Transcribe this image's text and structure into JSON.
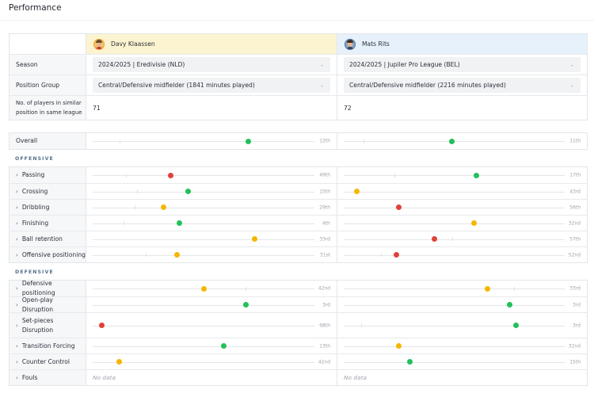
{
  "page": {
    "title": "Performance"
  },
  "colors": {
    "green": "#22c05a",
    "yellow": "#f5b700",
    "red": "#e0413a"
  },
  "players": [
    {
      "name": "Davy Klaassen",
      "season": "2024/2025 | Eredivisie (NLD)",
      "position_group": "Central/Defensive midfielder (1841 minutes played)",
      "similar_players": "71"
    },
    {
      "name": "Mats Rits",
      "season": "2024/2025 | Jupiler Pro League (BEL)",
      "position_group": "Central/Defensive midfielder (2216 minutes played)",
      "similar_players": "72"
    }
  ],
  "labels": {
    "season": "Season",
    "position_group": "Position Group",
    "similar_players": "No. of players in similar position in same league",
    "overall": "Overall",
    "no_data": "No data"
  },
  "overall": {
    "a": {
      "pct": 0.7,
      "tick": 0.12,
      "rank": "12th",
      "color": "green"
    },
    "b": {
      "pct": 0.49,
      "tick": 0.09,
      "rank": "11th",
      "color": "green"
    }
  },
  "sections": [
    {
      "title": "OFFENSIVE",
      "metrics": [
        {
          "label": "Passing",
          "a": {
            "pct": 0.35,
            "tick": 0.15,
            "rank": "49th",
            "color": "red"
          },
          "b": {
            "pct": 0.6,
            "tick": 0.23,
            "rank": "17th",
            "color": "green"
          }
        },
        {
          "label": "Crossing",
          "a": {
            "pct": 0.43,
            "tick": 0.2,
            "rank": "15th",
            "color": "green"
          },
          "b": {
            "pct": 0.06,
            "tick": 0.06,
            "rank": "43rd",
            "color": "yellow"
          }
        },
        {
          "label": "Dribbling",
          "a": {
            "pct": 0.32,
            "tick": 0.19,
            "rank": "29th",
            "color": "yellow"
          },
          "b": {
            "pct": 0.25,
            "tick": 0.25,
            "rank": "56th",
            "color": "red"
          }
        },
        {
          "label": "Finishing",
          "a": {
            "pct": 0.39,
            "tick": 0.14,
            "rank": "4th",
            "color": "green"
          },
          "b": {
            "pct": 0.59,
            "tick": 0.59,
            "rank": "32nd",
            "color": "yellow"
          }
        },
        {
          "label": "Ball retention",
          "a": {
            "pct": 0.73,
            "tick": 0.73,
            "rank": "33rd",
            "color": "yellow"
          },
          "b": {
            "pct": 0.41,
            "tick": 0.49,
            "rank": "57th",
            "color": "red"
          }
        },
        {
          "label": "Offensive positioning",
          "a": {
            "pct": 0.38,
            "tick": 0.24,
            "rank": "31st",
            "color": "yellow"
          },
          "b": {
            "pct": 0.24,
            "tick": 0.17,
            "rank": "52nd",
            "color": "red"
          }
        }
      ]
    },
    {
      "title": "DEFENSIVE",
      "metrics": [
        {
          "label": "Defensive positioning",
          "a": {
            "pct": 0.5,
            "tick": 0.69,
            "rank": "42nd",
            "color": "yellow"
          },
          "b": {
            "pct": 0.65,
            "tick": 0.77,
            "rank": "33rd",
            "color": "yellow"
          }
        },
        {
          "label": "Open-play Disruption",
          "a": {
            "pct": 0.69,
            "tick": 0.69,
            "rank": "3rd",
            "color": "green"
          },
          "b": {
            "pct": 0.75,
            "tick": 0.75,
            "rank": "3rd",
            "color": "green"
          }
        },
        {
          "label": "Set-pieces Disruption",
          "a": {
            "pct": 0.04,
            "tick": 0.04,
            "rank": "68th",
            "color": "red"
          },
          "b": {
            "pct": 0.78,
            "tick": 0.08,
            "rank": "3rd",
            "color": "green"
          }
        },
        {
          "label": "Transition Forcing",
          "a": {
            "pct": 0.59,
            "tick": 0.59,
            "rank": "13th",
            "color": "green"
          },
          "b": {
            "pct": 0.25,
            "tick": 0.25,
            "rank": "32nd",
            "color": "yellow"
          }
        },
        {
          "label": "Counter Control",
          "a": {
            "pct": 0.12,
            "tick": 0.12,
            "rank": "42nd",
            "color": "yellow"
          },
          "b": {
            "pct": 0.3,
            "tick": 0.3,
            "rank": "15th",
            "color": "green"
          }
        },
        {
          "label": "Fouls",
          "a": {
            "nodata": true
          },
          "b": {
            "nodata": true
          }
        }
      ]
    }
  ]
}
